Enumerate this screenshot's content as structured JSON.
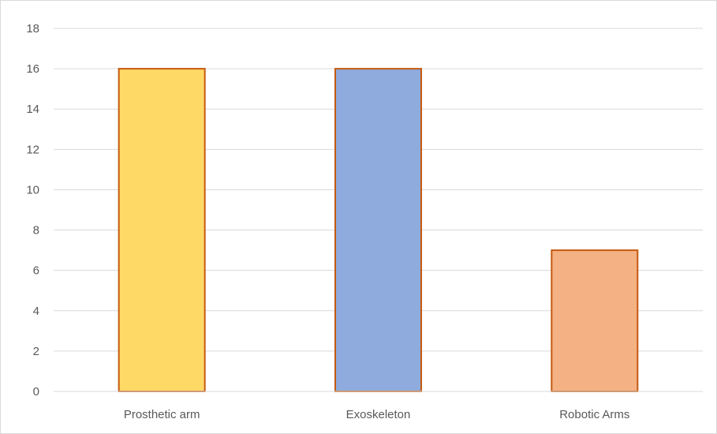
{
  "chart_data": {
    "type": "bar",
    "title": "",
    "xlabel": "",
    "ylabel": "",
    "categories": [
      "Prosthetic arm",
      "Exoskeleton",
      "Robotic Arms"
    ],
    "values": [
      16,
      16,
      7
    ],
    "bar_colors": [
      "#FFD966",
      "#8FAADC",
      "#F4B183"
    ],
    "bar_border_color": "#C55A11",
    "ylim": [
      0,
      18
    ],
    "yticks": [
      "0",
      "2",
      "4",
      "6",
      "8",
      "10",
      "12",
      "14",
      "16",
      "18"
    ],
    "grid": true,
    "legend": "none"
  }
}
